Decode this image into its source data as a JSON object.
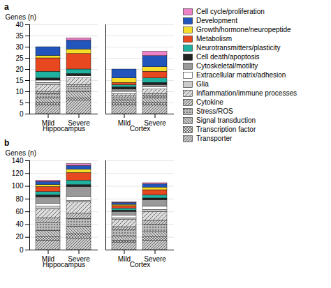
{
  "chart_data": [
    {
      "type": "bar",
      "stacked": true,
      "title": "a",
      "categories": [
        "Mild",
        "Severe",
        "Mild",
        "Severe"
      ],
      "group_labels": [
        "Hippocampus",
        "Hippocampus",
        "Cortex",
        "Cortex"
      ],
      "ylabel": "Genes (n)",
      "ylim": [
        0,
        40
      ],
      "yticks": [
        0,
        5,
        10,
        15,
        20,
        25,
        30,
        35,
        40
      ],
      "grid": true,
      "legend": "right",
      "series": [
        {
          "name": "Cell cycle/proliferation",
          "color": "#ee82c8",
          "values": [
            0,
            1,
            0,
            2
          ]
        },
        {
          "name": "Development",
          "color": "#2255bb",
          "values": [
            4,
            4,
            4,
            5
          ]
        },
        {
          "name": "Growth/hormone/neuropeptide",
          "color": "#f5dd2a",
          "values": [
            1,
            2,
            2,
            2
          ]
        },
        {
          "name": "Metabolism",
          "color": "#e84820",
          "values": [
            6,
            7,
            1,
            3
          ]
        },
        {
          "name": "Neurotransmitters/plasticity",
          "color": "#20b0a0",
          "values": [
            3,
            2,
            1,
            2
          ]
        },
        {
          "name": "Cell death/apoptosis",
          "color": "#222222",
          "values": [
            1,
            1,
            1,
            1
          ]
        },
        {
          "name": "Cytoskeletal/motility",
          "color": "#999999",
          "values": [
            0,
            0,
            1,
            1
          ]
        },
        {
          "name": "Extracellular matrix/adhesion",
          "color": "#ffffff",
          "values": [
            1,
            1,
            1,
            1
          ]
        },
        {
          "name": "Glia",
          "color": "#cccccc",
          "values": [
            1,
            0,
            0,
            0
          ]
        },
        {
          "name": "Inflammation/immune processes",
          "color": "#dddddd",
          "values": [
            3,
            3,
            1,
            2
          ]
        },
        {
          "name": "Cytokine",
          "color": "#cccccc",
          "values": [
            1,
            1,
            1,
            1
          ]
        },
        {
          "name": "Stress/ROS",
          "color": "#bbbbbb",
          "values": [
            2,
            2,
            1,
            1
          ]
        },
        {
          "name": "Signal transduction",
          "color": "#cccccc",
          "values": [
            2,
            3,
            1,
            2
          ]
        },
        {
          "name": "Transcription factor",
          "color": "#dddddd",
          "values": [
            1,
            1,
            1,
            1
          ]
        },
        {
          "name": "Transporter",
          "color": "#cccccc",
          "values": [
            4,
            6,
            4,
            4
          ]
        }
      ]
    },
    {
      "type": "bar",
      "stacked": true,
      "title": "b",
      "categories": [
        "Mild",
        "Severe",
        "Mild",
        "Severe"
      ],
      "group_labels": [
        "Hippocampus",
        "Hippocampus",
        "Cortex",
        "Cortex"
      ],
      "ylabel": "Genes (n)",
      "ylim": [
        0,
        140
      ],
      "yticks": [
        0,
        20,
        40,
        60,
        80,
        100,
        120,
        140
      ],
      "grid": true,
      "series": [
        {
          "name": "Cell cycle/proliferation",
          "color": "#ee82c8",
          "values": [
            2,
            3,
            1,
            2
          ]
        },
        {
          "name": "Development",
          "color": "#2255bb",
          "values": [
            5,
            6,
            3,
            5
          ]
        },
        {
          "name": "Growth/hormone/neuropeptide",
          "color": "#f5dd2a",
          "values": [
            3,
            5,
            2,
            4
          ]
        },
        {
          "name": "Metabolism",
          "color": "#e84820",
          "values": [
            8,
            12,
            4,
            8
          ]
        },
        {
          "name": "Neurotransmitters/plasticity",
          "color": "#20b0a0",
          "values": [
            5,
            7,
            3,
            5
          ]
        },
        {
          "name": "Cell death/apoptosis",
          "color": "#222222",
          "values": [
            3,
            3,
            2,
            3
          ]
        },
        {
          "name": "Cytoskeletal/motility",
          "color": "#999999",
          "values": [
            10,
            15,
            6,
            10
          ]
        },
        {
          "name": "Extracellular matrix/adhesion",
          "color": "#ffffff",
          "values": [
            5,
            7,
            4,
            5
          ]
        },
        {
          "name": "Glia",
          "color": "#cccccc",
          "values": [
            4,
            2,
            2,
            3
          ]
        },
        {
          "name": "Inflammation/immune processes",
          "color": "#dddddd",
          "values": [
            14,
            18,
            12,
            14
          ]
        },
        {
          "name": "Cytokine",
          "color": "#cccccc",
          "values": [
            8,
            8,
            5,
            6
          ]
        },
        {
          "name": "Stress/ROS",
          "color": "#bbbbbb",
          "values": [
            12,
            12,
            10,
            12
          ]
        },
        {
          "name": "Signal transduction",
          "color": "#cccccc",
          "values": [
            10,
            12,
            6,
            8
          ]
        },
        {
          "name": "Transcription factor",
          "color": "#dddddd",
          "values": [
            5,
            7,
            3,
            5
          ]
        },
        {
          "name": "Transporter",
          "color": "#cccccc",
          "values": [
            15,
            18,
            12,
            15
          ]
        }
      ]
    }
  ]
}
